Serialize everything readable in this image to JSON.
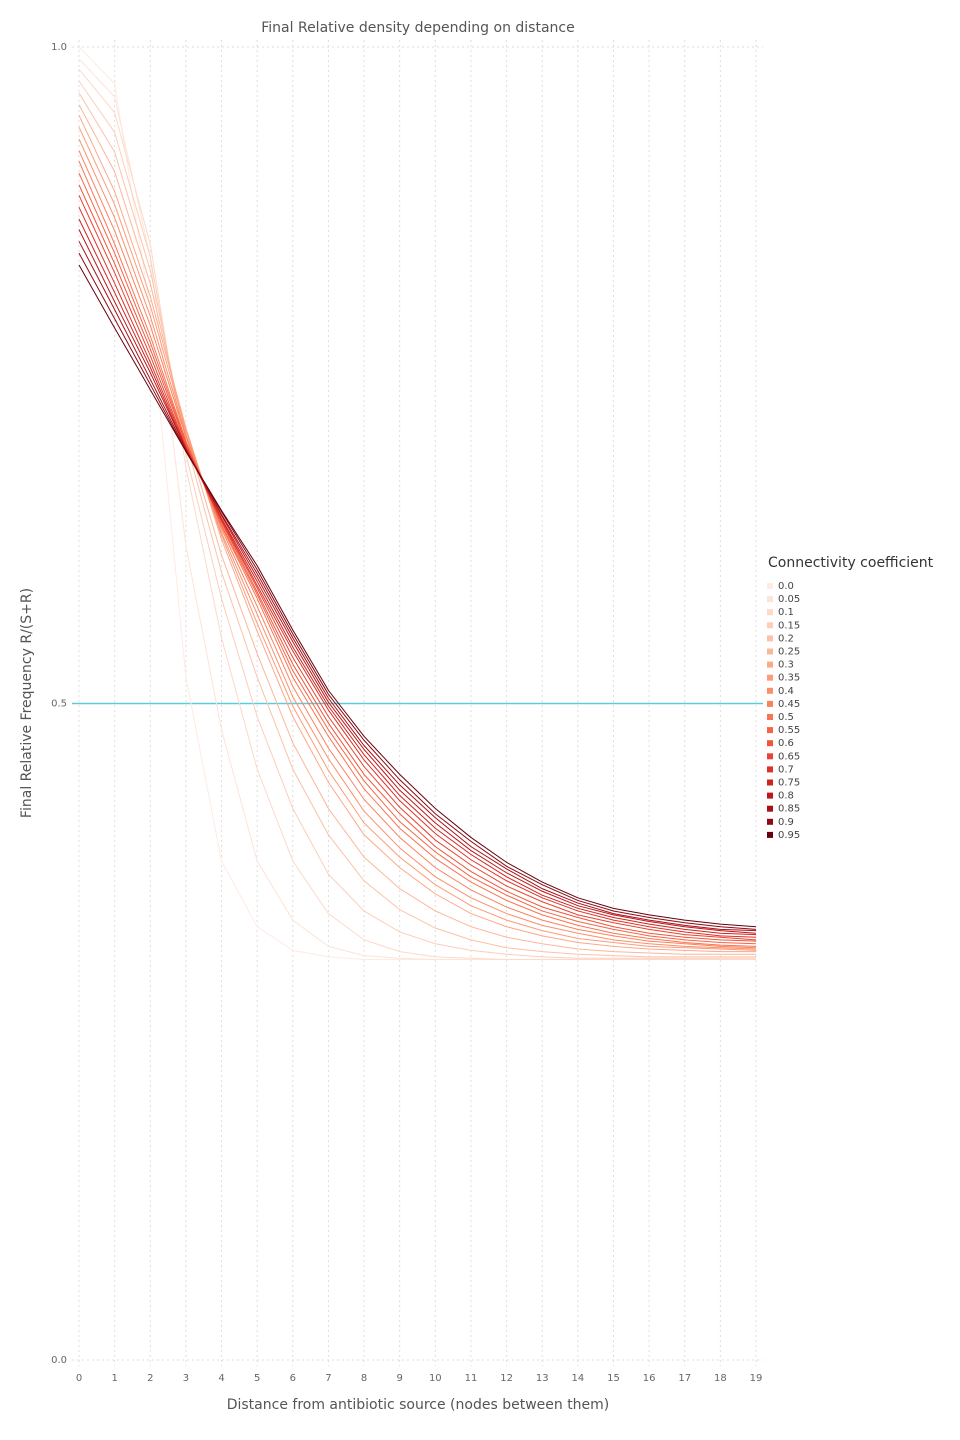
{
  "chart_data": {
    "type": "line",
    "title": "Final Relative density depending on distance",
    "x_label": "Distance from antibiotic source (nodes between them)",
    "y_label": "Final Relative Frequency R/(S+R)",
    "legend_title": "Connectivity coefficient",
    "legend_position": "right",
    "grid": true,
    "x": [
      0,
      1,
      2,
      3,
      4,
      5,
      6,
      7,
      8,
      9,
      10,
      11,
      12,
      13,
      14,
      15,
      16,
      17,
      18,
      19
    ],
    "xlim": [
      0,
      19
    ],
    "xticks": [
      0,
      1,
      2,
      3,
      4,
      5,
      6,
      7,
      8,
      9,
      10,
      11,
      12,
      13,
      14,
      15,
      16,
      17,
      18,
      19
    ],
    "ylim": [
      0,
      1
    ],
    "yticks": [
      {
        "value": 0,
        "label": "0.0"
      },
      0.5,
      {
        "value": 1,
        "label": "1.0"
      }
    ],
    "hline": {
      "value": 0.5,
      "color": "#5ccbdb"
    },
    "series": [
      {
        "name": "0.0",
        "color": "#feebe2",
        "values": [
          1.0,
          0.972,
          0.8,
          0.52,
          0.38,
          0.33,
          0.312,
          0.307,
          0.305,
          0.305,
          0.305,
          0.305,
          0.305,
          0.305,
          0.305,
          0.305,
          0.305,
          0.305,
          0.305,
          0.305
        ]
      },
      {
        "name": "0.05",
        "color": "#fee3d7",
        "values": [
          0.991,
          0.962,
          0.84,
          0.62,
          0.48,
          0.38,
          0.335,
          0.315,
          0.308,
          0.306,
          0.305,
          0.305,
          0.305,
          0.305,
          0.305,
          0.305,
          0.305,
          0.305,
          0.305,
          0.305
        ]
      },
      {
        "name": "0.1",
        "color": "#fdd9c9",
        "values": [
          0.983,
          0.95,
          0.85,
          0.68,
          0.55,
          0.45,
          0.38,
          0.34,
          0.32,
          0.311,
          0.307,
          0.306,
          0.305,
          0.305,
          0.305,
          0.305,
          0.305,
          0.305,
          0.305,
          0.305
        ]
      },
      {
        "name": "0.15",
        "color": "#fcceba",
        "values": [
          0.974,
          0.935,
          0.84,
          0.69,
          0.58,
          0.49,
          0.42,
          0.37,
          0.342,
          0.326,
          0.317,
          0.312,
          0.309,
          0.307,
          0.306,
          0.306,
          0.306,
          0.306,
          0.306,
          0.306
        ]
      },
      {
        "name": "0.2",
        "color": "#fcc2a9",
        "values": [
          0.965,
          0.92,
          0.83,
          0.7,
          0.6,
          0.52,
          0.45,
          0.4,
          0.365,
          0.343,
          0.329,
          0.32,
          0.314,
          0.311,
          0.309,
          0.308,
          0.307,
          0.307,
          0.307,
          0.307
        ]
      },
      {
        "name": "0.25",
        "color": "#fcb69a",
        "values": [
          0.956,
          0.905,
          0.82,
          0.705,
          0.613,
          0.538,
          0.47,
          0.42,
          0.383,
          0.359,
          0.342,
          0.33,
          0.322,
          0.317,
          0.313,
          0.311,
          0.31,
          0.309,
          0.309,
          0.309
        ]
      },
      {
        "name": "0.3",
        "color": "#fca98a",
        "values": [
          0.948,
          0.89,
          0.81,
          0.71,
          0.625,
          0.555,
          0.49,
          0.44,
          0.4,
          0.375,
          0.355,
          0.34,
          0.33,
          0.323,
          0.318,
          0.315,
          0.313,
          0.312,
          0.311,
          0.311
        ]
      },
      {
        "name": "0.35",
        "color": "#fc9c7b",
        "values": [
          0.939,
          0.88,
          0.803,
          0.708,
          0.628,
          0.561,
          0.498,
          0.449,
          0.409,
          0.383,
          0.362,
          0.346,
          0.335,
          0.327,
          0.321,
          0.318,
          0.315,
          0.314,
          0.313,
          0.312
        ]
      },
      {
        "name": "0.4",
        "color": "#fb8f6c",
        "values": [
          0.93,
          0.87,
          0.795,
          0.705,
          0.63,
          0.568,
          0.505,
          0.458,
          0.418,
          0.39,
          0.368,
          0.352,
          0.34,
          0.331,
          0.325,
          0.32,
          0.317,
          0.315,
          0.314,
          0.313
        ]
      },
      {
        "name": "0.45",
        "color": "#fb825e",
        "values": [
          0.921,
          0.86,
          0.788,
          0.703,
          0.633,
          0.574,
          0.513,
          0.466,
          0.427,
          0.398,
          0.375,
          0.358,
          0.345,
          0.335,
          0.328,
          0.323,
          0.319,
          0.317,
          0.315,
          0.314
        ]
      },
      {
        "name": "0.5",
        "color": "#fa7452",
        "values": [
          0.913,
          0.85,
          0.78,
          0.7,
          0.635,
          0.58,
          0.52,
          0.475,
          0.435,
          0.405,
          0.382,
          0.364,
          0.35,
          0.339,
          0.331,
          0.325,
          0.321,
          0.318,
          0.316,
          0.315
        ]
      },
      {
        "name": "0.55",
        "color": "#f66446",
        "values": [
          0.904,
          0.843,
          0.775,
          0.699,
          0.636,
          0.583,
          0.525,
          0.48,
          0.441,
          0.41,
          0.387,
          0.368,
          0.354,
          0.342,
          0.334,
          0.328,
          0.323,
          0.32,
          0.318,
          0.317
        ]
      },
      {
        "name": "0.6",
        "color": "#f0553b",
        "values": [
          0.895,
          0.835,
          0.77,
          0.698,
          0.638,
          0.585,
          0.53,
          0.485,
          0.446,
          0.416,
          0.391,
          0.372,
          0.357,
          0.345,
          0.337,
          0.33,
          0.325,
          0.322,
          0.32,
          0.319
        ]
      },
      {
        "name": "0.65",
        "color": "#e84431",
        "values": [
          0.887,
          0.828,
          0.765,
          0.696,
          0.639,
          0.588,
          0.535,
          0.49,
          0.452,
          0.421,
          0.396,
          0.377,
          0.361,
          0.349,
          0.339,
          0.333,
          0.328,
          0.324,
          0.322,
          0.32
        ]
      },
      {
        "name": "0.7",
        "color": "#dc3228",
        "values": [
          0.878,
          0.82,
          0.76,
          0.695,
          0.64,
          0.59,
          0.54,
          0.495,
          0.457,
          0.426,
          0.401,
          0.381,
          0.365,
          0.352,
          0.342,
          0.335,
          0.33,
          0.326,
          0.323,
          0.322
        ]
      },
      {
        "name": "0.75",
        "color": "#cd2421",
        "values": [
          0.869,
          0.813,
          0.756,
          0.694,
          0.641,
          0.593,
          0.543,
          0.498,
          0.461,
          0.43,
          0.405,
          0.385,
          0.368,
          0.354,
          0.344,
          0.337,
          0.332,
          0.328,
          0.325,
          0.324
        ]
      },
      {
        "name": "0.8",
        "color": "#bc181c",
        "values": [
          0.861,
          0.806,
          0.752,
          0.694,
          0.643,
          0.596,
          0.547,
          0.501,
          0.465,
          0.434,
          0.409,
          0.388,
          0.371,
          0.357,
          0.346,
          0.339,
          0.334,
          0.33,
          0.327,
          0.325
        ]
      },
      {
        "name": "0.85",
        "color": "#a81117",
        "values": [
          0.852,
          0.8,
          0.747,
          0.693,
          0.644,
          0.599,
          0.55,
          0.504,
          0.468,
          0.438,
          0.413,
          0.391,
          0.374,
          0.359,
          0.348,
          0.34,
          0.335,
          0.331,
          0.328,
          0.327
        ]
      },
      {
        "name": "0.9",
        "color": "#8c0a12",
        "values": [
          0.843,
          0.793,
          0.743,
          0.692,
          0.646,
          0.602,
          0.553,
          0.507,
          0.472,
          0.442,
          0.416,
          0.395,
          0.376,
          0.362,
          0.35,
          0.342,
          0.337,
          0.333,
          0.33,
          0.328
        ]
      },
      {
        "name": "0.95",
        "color": "#67000d",
        "values": [
          0.834,
          0.786,
          0.739,
          0.692,
          0.647,
          0.605,
          0.556,
          0.51,
          0.475,
          0.446,
          0.42,
          0.398,
          0.379,
          0.364,
          0.352,
          0.344,
          0.339,
          0.335,
          0.332,
          0.33
        ]
      }
    ]
  }
}
